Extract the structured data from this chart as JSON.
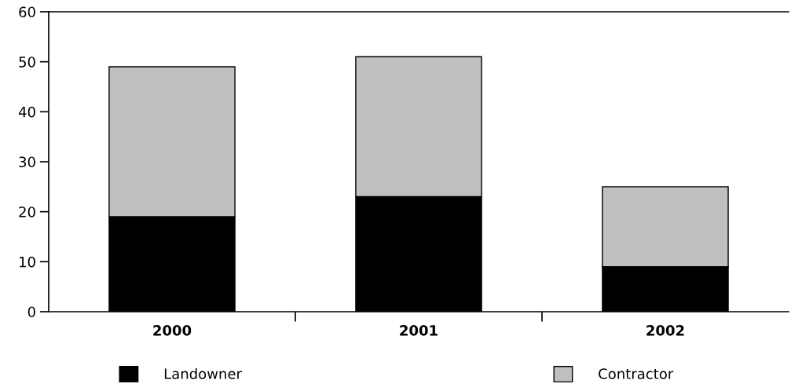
{
  "chart_data": {
    "type": "bar",
    "stacked": true,
    "categories": [
      "2000",
      "2001",
      "2002"
    ],
    "series": [
      {
        "name": "Landowner",
        "color": "#000000",
        "values": [
          19,
          23,
          9
        ]
      },
      {
        "name": "Contractor",
        "color": "#c0c0c0",
        "values": [
          30,
          28,
          16
        ]
      }
    ],
    "ylim": [
      0,
      60
    ],
    "yticks": [
      0,
      10,
      20,
      30,
      40,
      50,
      60
    ],
    "grid": false,
    "legend": "bottom"
  }
}
